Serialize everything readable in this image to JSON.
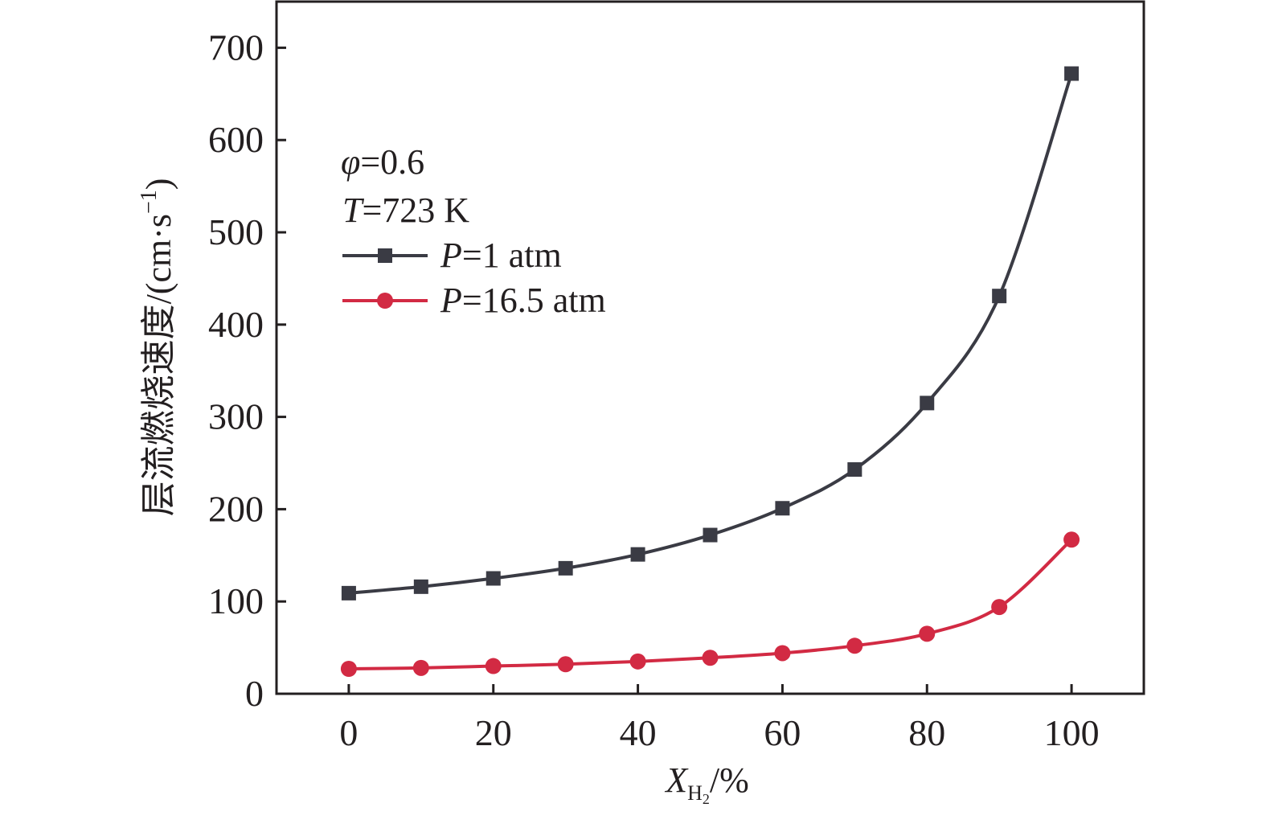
{
  "chart_data": {
    "type": "line",
    "title": "",
    "xlabel": {
      "symbol": "X",
      "subscript": "H",
      "subsub": "2",
      "unit": "/%"
    },
    "ylabel": {
      "text": "层流燃烧速度/(cm·s",
      "sup": "−1",
      "close": ")"
    },
    "xlim": [
      -10,
      110
    ],
    "ylim": [
      0,
      750
    ],
    "xticks": [
      0,
      20,
      40,
      60,
      80,
      100
    ],
    "yticks": [
      0,
      100,
      200,
      300,
      400,
      500,
      600,
      700
    ],
    "grid": false,
    "legend_position": "top-left",
    "annotations": [
      {
        "symbol": "φ",
        "rest": "=0.6"
      },
      {
        "symbol": "T",
        "rest": "=723 K"
      }
    ],
    "x": [
      0,
      10,
      20,
      30,
      40,
      50,
      60,
      70,
      80,
      90,
      100
    ],
    "series": [
      {
        "legend_symbol": "P",
        "legend_rest": "=1 atm",
        "marker": "square",
        "color": "#3a3b44",
        "values": [
          109,
          116,
          125,
          136,
          151,
          172,
          201,
          243,
          315,
          431,
          672
        ]
      },
      {
        "legend_symbol": "P",
        "legend_rest": "=16.5 atm",
        "marker": "circle",
        "color": "#d22a43",
        "values": [
          27,
          28,
          30,
          32,
          35,
          39,
          44,
          52,
          65,
          94,
          167
        ]
      }
    ]
  }
}
